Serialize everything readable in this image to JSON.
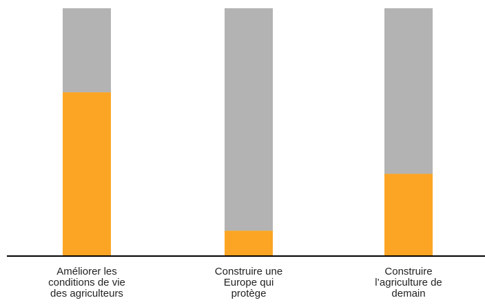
{
  "chart_data": {
    "type": "bar",
    "stacked": true,
    "title": "",
    "xlabel": "",
    "ylabel": "",
    "ylim": [
      0,
      100
    ],
    "grid": false,
    "categories": [
      [
        "Améliorer les",
        "conditions de vie",
        "des agriculteurs"
      ],
      [
        "Construire une",
        "Europe qui",
        "protège"
      ],
      [
        "Construire",
        "l’agriculture de",
        "demain"
      ]
    ],
    "series": [
      {
        "values": [
          66,
          10,
          33
        ],
        "color": "#fca524"
      },
      {
        "values": [
          34,
          90,
          67
        ],
        "color": "#b3b3b3"
      }
    ]
  },
  "colors": {
    "axis": "#000000",
    "label_text": "#222222"
  }
}
